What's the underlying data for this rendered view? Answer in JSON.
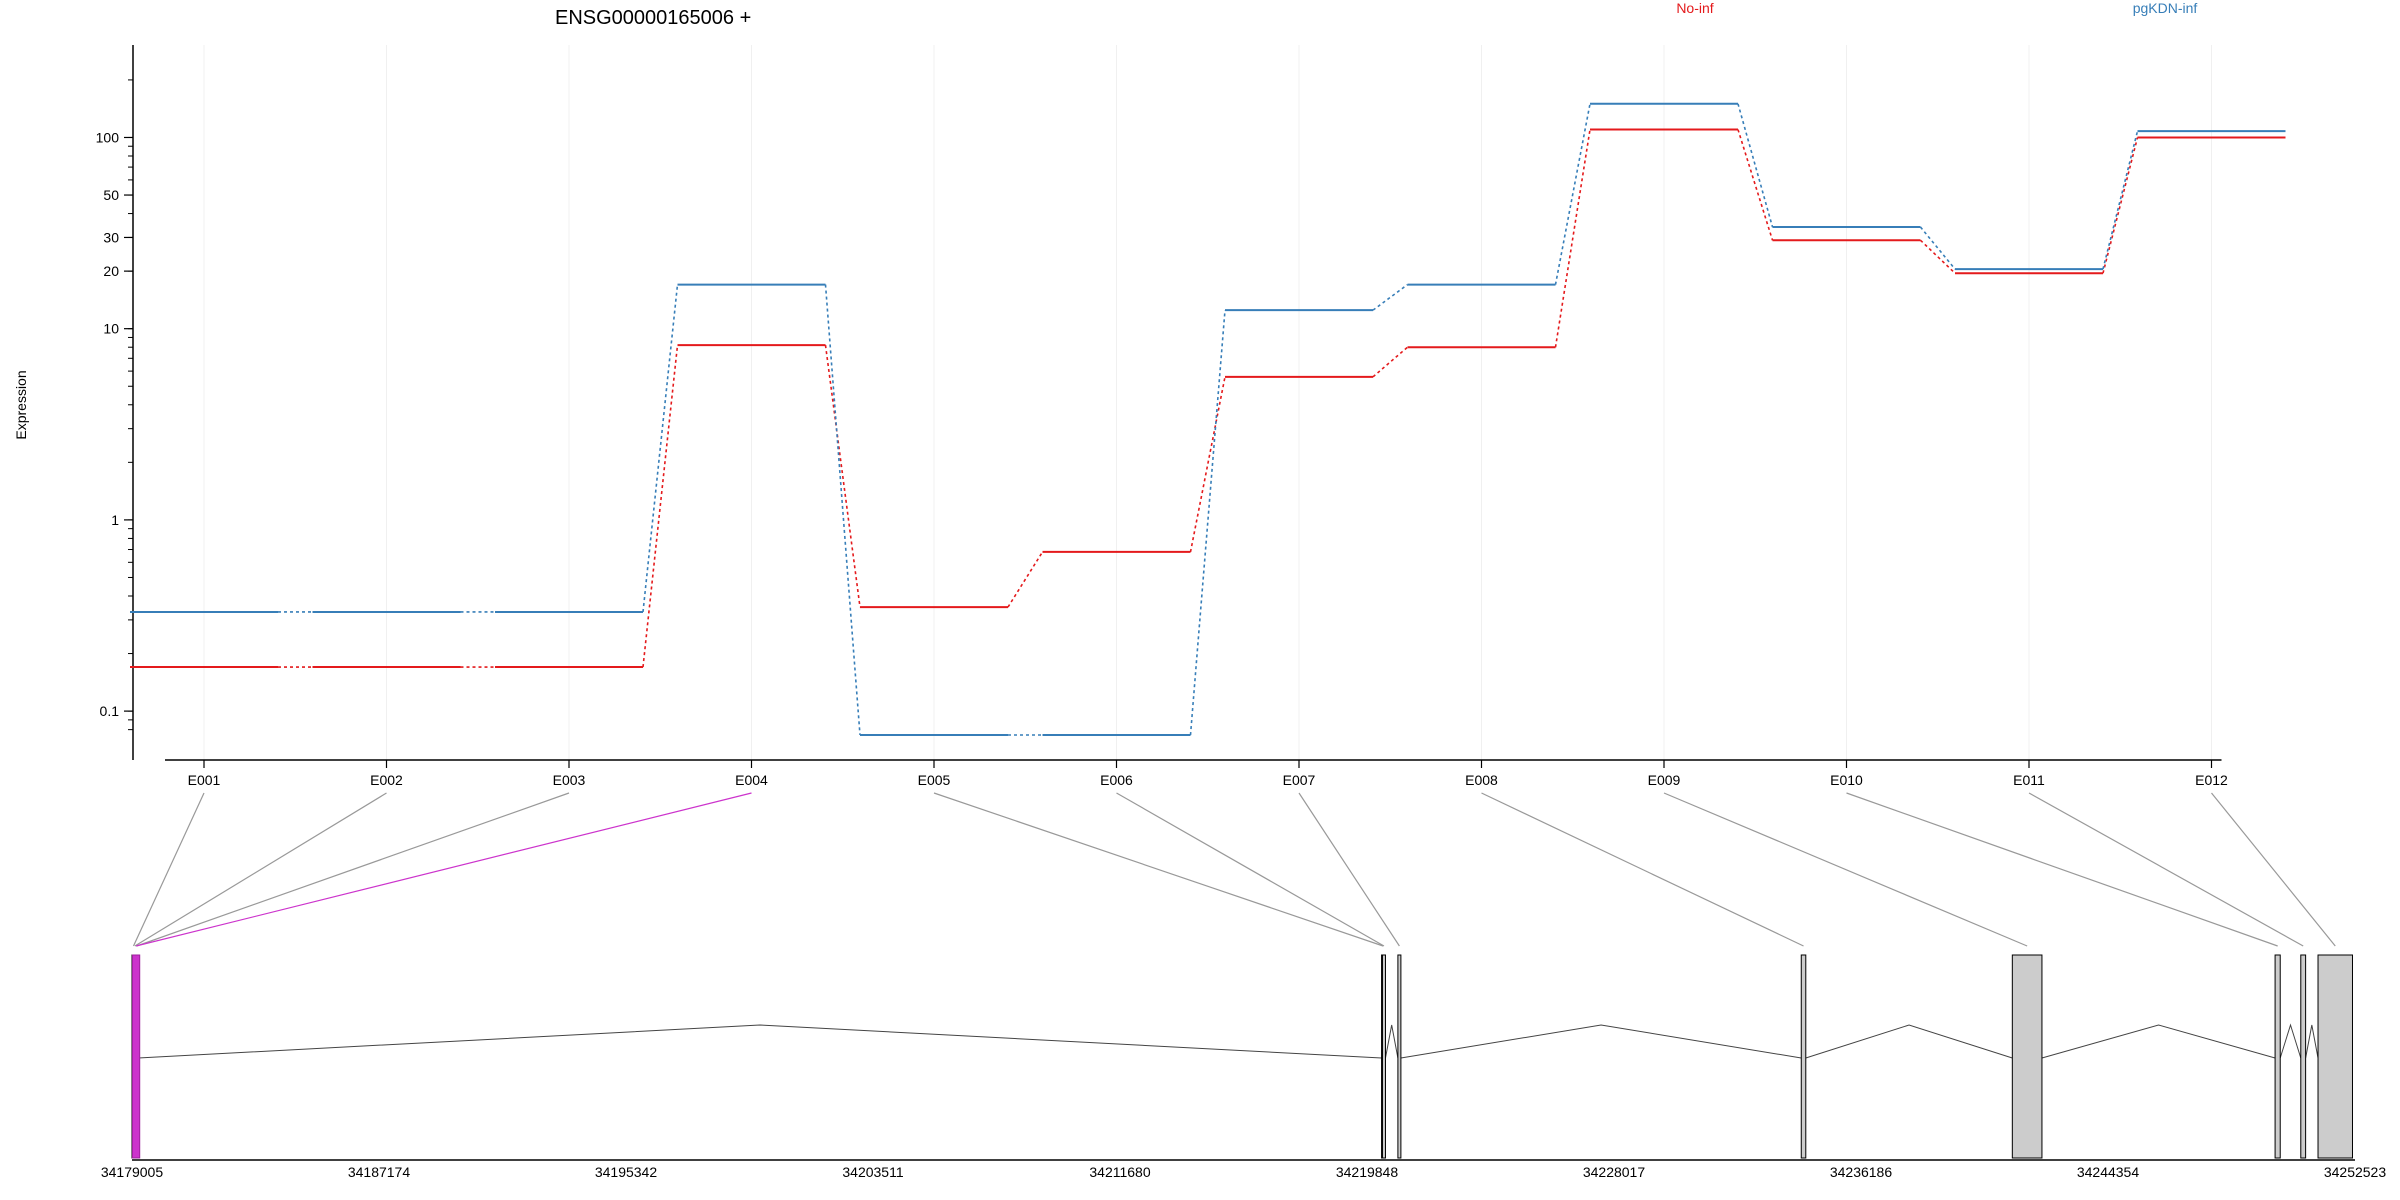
{
  "chart_data": {
    "type": "line",
    "title": "ENSG00000165006 +",
    "ylabel": "Expression",
    "yscale": "log",
    "ylim": [
      0.075,
      220
    ],
    "yticks": [
      {
        "value": 0.1,
        "label": "0.1"
      },
      {
        "value": 1,
        "label": "1"
      },
      {
        "value": 10,
        "label": "10"
      },
      {
        "value": 20,
        "label": "20"
      },
      {
        "value": 30,
        "label": "30"
      },
      {
        "value": 50,
        "label": "50"
      },
      {
        "value": 100,
        "label": "100"
      }
    ],
    "categories": [
      "E001",
      "E002",
      "E003",
      "E004",
      "E005",
      "E006",
      "E007",
      "E008",
      "E009",
      "E010",
      "E011",
      "E012"
    ],
    "grid": "vertical, light",
    "legend_placement": "top",
    "series": [
      {
        "name": "No-inf",
        "color": "#e41a1c",
        "values": [
          0.17,
          0.17,
          0.17,
          8.2,
          0.35,
          0.68,
          5.6,
          8.0,
          110,
          29,
          19.5,
          100
        ]
      },
      {
        "name": "pgKDN-inf",
        "color": "#377eb8",
        "values": [
          0.33,
          0.33,
          0.33,
          17,
          0.075,
          0.075,
          12.5,
          17,
          150,
          34,
          20.5,
          108
        ]
      }
    ],
    "highlighted_exon": "E004",
    "highlight_color": "#cc33cc",
    "genomic_ticks": [
      "34179005",
      "34187174",
      "34195342",
      "34203511",
      "34211680",
      "34219848",
      "34228017",
      "34236186",
      "34244354",
      "34252523"
    ],
    "genomic_range": [
      34179005,
      34252523
    ],
    "exons": [
      {
        "id": "E001",
        "start": 34179005,
        "end": 34179050
      },
      {
        "id": "E002",
        "start": 34179050,
        "end": 34179110
      },
      {
        "id": "E003",
        "start": 34179110,
        "end": 34179180
      },
      {
        "id": "E004",
        "start": 34179020,
        "end": 34179260
      },
      {
        "id": "E005",
        "start": 34220330,
        "end": 34220360
      },
      {
        "id": "E006",
        "start": 34220360,
        "end": 34220400
      },
      {
        "id": "E007",
        "start": 34220870,
        "end": 34220960
      },
      {
        "id": "E008",
        "start": 34234210,
        "end": 34234360
      },
      {
        "id": "E009",
        "start": 34241190,
        "end": 34242170
      },
      {
        "id": "E010",
        "start": 34249880,
        "end": 34250050
      },
      {
        "id": "E011",
        "start": 34250730,
        "end": 34250890
      },
      {
        "id": "E012",
        "start": 34251300,
        "end": 34252440
      }
    ]
  }
}
